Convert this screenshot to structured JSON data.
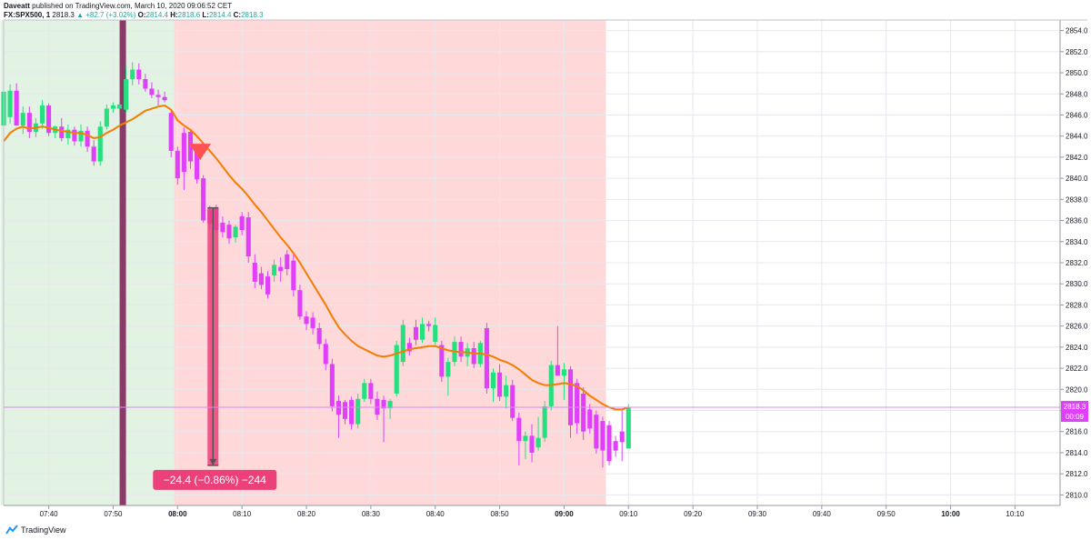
{
  "header": {
    "publisher": "Daveatt",
    "publisher_suffix": "published on TradingView.com, March 10, 2020 09:06:52 CET",
    "symbol": "FX:SPX500, 1",
    "last": "2818.3",
    "change": "+82.7 (+3.02%)",
    "o_label": "O:",
    "o": "2814.4",
    "h_label": "H:",
    "h": "2818.6",
    "l_label": "L:",
    "l": "2814.4",
    "c_label": "C:",
    "c": "2818.3"
  },
  "footer": {
    "brand": "TradingView",
    "logo_icon": "tradingview-logo-icon"
  },
  "colors": {
    "bull": "#26e07f",
    "bear": "#e040fb",
    "ema": "#f57c00",
    "green_zone": "rgba(76,175,80,0.16)",
    "red_zone": "rgba(255,82,82,0.22)",
    "marker_bar": "#8a3a66",
    "measure": "#ec407a",
    "price_line": "#d98cf0",
    "price_label": "#e040fb"
  },
  "chart_data": {
    "type": "candlestick",
    "title": "",
    "xlabel": "",
    "ylabel": "",
    "ylim": [
      2809,
      2855
    ],
    "y_ticks": [
      "2810.0",
      "2812.0",
      "2814.0",
      "2816.0",
      "2818.0",
      "2820.0",
      "2822.0",
      "2824.0",
      "2826.0",
      "2828.0",
      "2830.0",
      "2832.0",
      "2834.0",
      "2836.0",
      "2838.0",
      "2840.0",
      "2842.0",
      "2844.0",
      "2846.0",
      "2848.0",
      "2850.0",
      "2852.0",
      "2854.0"
    ],
    "x_ticks": [
      {
        "label": "07:40",
        "min": 7
      },
      {
        "label": "07:50",
        "min": 17
      },
      {
        "label": "08:00",
        "min": 27,
        "bold": true
      },
      {
        "label": "08:10",
        "min": 37
      },
      {
        "label": "08:20",
        "min": 47
      },
      {
        "label": "08:30",
        "min": 57
      },
      {
        "label": "08:40",
        "min": 67
      },
      {
        "label": "08:50",
        "min": 77
      },
      {
        "label": "09:00",
        "min": 87,
        "bold": true
      },
      {
        "label": "09:10",
        "min": 97
      },
      {
        "label": "09:20",
        "min": 107
      },
      {
        "label": "09:30",
        "min": 117
      },
      {
        "label": "09:40",
        "min": 127
      },
      {
        "label": "09:50",
        "min": 137
      },
      {
        "label": "10:00",
        "min": 147,
        "bold": true
      },
      {
        "label": "10:10",
        "min": 157
      }
    ],
    "x_range_minutes": [
      0,
      164
    ],
    "grid": true,
    "candles": [
      {
        "o": 2845.0,
        "h": 2848.6,
        "l": 2844.6,
        "c": 2848.2
      },
      {
        "o": 2845.8,
        "h": 2848.9,
        "l": 2845.2,
        "c": 2848.3
      },
      {
        "o": 2848.3,
        "h": 2849.0,
        "l": 2845.0,
        "c": 2845.0
      },
      {
        "o": 2845.0,
        "h": 2846.8,
        "l": 2844.2,
        "c": 2846.2
      },
      {
        "o": 2846.2,
        "h": 2846.8,
        "l": 2843.8,
        "c": 2844.4
      },
      {
        "o": 2844.4,
        "h": 2845.7,
        "l": 2843.9,
        "c": 2845.2
      },
      {
        "o": 2845.2,
        "h": 2847.4,
        "l": 2844.7,
        "c": 2846.9
      },
      {
        "o": 2846.9,
        "h": 2847.1,
        "l": 2844.0,
        "c": 2844.3
      },
      {
        "o": 2844.3,
        "h": 2845.0,
        "l": 2843.8,
        "c": 2844.9
      },
      {
        "o": 2844.9,
        "h": 2845.7,
        "l": 2843.5,
        "c": 2843.8
      },
      {
        "o": 2843.8,
        "h": 2845.1,
        "l": 2843.2,
        "c": 2844.6
      },
      {
        "o": 2844.6,
        "h": 2844.9,
        "l": 2843.1,
        "c": 2843.5
      },
      {
        "o": 2843.5,
        "h": 2845.1,
        "l": 2843.0,
        "c": 2844.5
      },
      {
        "o": 2844.5,
        "h": 2844.9,
        "l": 2842.5,
        "c": 2843.0
      },
      {
        "o": 2843.0,
        "h": 2843.6,
        "l": 2841.2,
        "c": 2841.6
      },
      {
        "o": 2841.6,
        "h": 2845.4,
        "l": 2841.2,
        "c": 2844.9
      },
      {
        "o": 2844.9,
        "h": 2847.0,
        "l": 2844.6,
        "c": 2846.6
      },
      {
        "o": 2846.6,
        "h": 2847.2,
        "l": 2846.2,
        "c": 2846.9
      },
      {
        "o": 2846.6,
        "h": 2847.2,
        "l": 2846.0,
        "c": 2847.0
      },
      {
        "o": 2846.5,
        "h": 2850.6,
        "l": 2846.2,
        "c": 2849.4
      },
      {
        "o": 2849.4,
        "h": 2851.0,
        "l": 2848.8,
        "c": 2850.3
      },
      {
        "o": 2850.3,
        "h": 2850.9,
        "l": 2848.9,
        "c": 2849.4
      },
      {
        "o": 2849.4,
        "h": 2849.9,
        "l": 2848.2,
        "c": 2848.5
      },
      {
        "o": 2848.5,
        "h": 2849.1,
        "l": 2847.6,
        "c": 2847.9
      },
      {
        "o": 2847.9,
        "h": 2848.4,
        "l": 2846.9,
        "c": 2847.7
      },
      {
        "o": 2847.7,
        "h": 2848.2,
        "l": 2847.2,
        "c": 2847.4
      },
      {
        "o": 2846.2,
        "h": 2846.4,
        "l": 2842.0,
        "c": 2842.6
      },
      {
        "o": 2842.6,
        "h": 2843.0,
        "l": 2839.4,
        "c": 2840.0
      },
      {
        "o": 2844.3,
        "h": 2844.8,
        "l": 2838.9,
        "c": 2840.6
      },
      {
        "o": 2844.4,
        "h": 2844.6,
        "l": 2840.9,
        "c": 2841.6
      },
      {
        "o": 2842.6,
        "h": 2843.0,
        "l": 2839.5,
        "c": 2839.9
      },
      {
        "o": 2840.0,
        "h": 2840.3,
        "l": 2835.8,
        "c": 2836.0
      },
      {
        "o": 2837.0,
        "h": 2837.4,
        "l": 2835.2,
        "c": 2835.7
      },
      {
        "o": 2837.2,
        "h": 2837.5,
        "l": 2834.8,
        "c": 2835.1
      },
      {
        "o": 2835.8,
        "h": 2836.4,
        "l": 2834.4,
        "c": 2834.9
      },
      {
        "o": 2835.6,
        "h": 2836.0,
        "l": 2833.8,
        "c": 2834.3
      },
      {
        "o": 2834.4,
        "h": 2835.6,
        "l": 2833.9,
        "c": 2835.4
      },
      {
        "o": 2836.4,
        "h": 2836.8,
        "l": 2834.6,
        "c": 2835.1
      },
      {
        "o": 2836.3,
        "h": 2836.8,
        "l": 2832.0,
        "c": 2832.6
      },
      {
        "o": 2832.0,
        "h": 2832.8,
        "l": 2829.6,
        "c": 2830.2
      },
      {
        "o": 2831.0,
        "h": 2831.6,
        "l": 2829.5,
        "c": 2829.9
      },
      {
        "o": 2830.7,
        "h": 2831.2,
        "l": 2828.6,
        "c": 2829.0
      },
      {
        "o": 2830.8,
        "h": 2832.3,
        "l": 2830.2,
        "c": 2831.8
      },
      {
        "o": 2831.6,
        "h": 2832.5,
        "l": 2830.2,
        "c": 2831.2
      },
      {
        "o": 2832.8,
        "h": 2833.2,
        "l": 2830.8,
        "c": 2831.4
      },
      {
        "o": 2832.2,
        "h": 2833.0,
        "l": 2828.8,
        "c": 2829.4
      },
      {
        "o": 2829.4,
        "h": 2829.9,
        "l": 2826.6,
        "c": 2826.9
      },
      {
        "o": 2826.9,
        "h": 2827.4,
        "l": 2825.6,
        "c": 2826.2
      },
      {
        "o": 2826.8,
        "h": 2827.3,
        "l": 2825.2,
        "c": 2825.8
      },
      {
        "o": 2825.8,
        "h": 2826.3,
        "l": 2823.8,
        "c": 2824.3
      },
      {
        "o": 2824.3,
        "h": 2824.8,
        "l": 2821.8,
        "c": 2822.4
      },
      {
        "o": 2822.4,
        "h": 2822.9,
        "l": 2817.9,
        "c": 2818.4
      },
      {
        "o": 2818.9,
        "h": 2819.4,
        "l": 2815.4,
        "c": 2817.6
      },
      {
        "o": 2818.8,
        "h": 2819.0,
        "l": 2816.7,
        "c": 2817.2
      },
      {
        "o": 2819.0,
        "h": 2819.3,
        "l": 2816.2,
        "c": 2816.7
      },
      {
        "o": 2816.7,
        "h": 2819.6,
        "l": 2816.3,
        "c": 2819.1
      },
      {
        "o": 2819.1,
        "h": 2821.0,
        "l": 2818.8,
        "c": 2820.6
      },
      {
        "o": 2820.6,
        "h": 2821.0,
        "l": 2818.6,
        "c": 2819.1
      },
      {
        "o": 2819.1,
        "h": 2819.8,
        "l": 2817.1,
        "c": 2817.6
      },
      {
        "o": 2819.0,
        "h": 2819.4,
        "l": 2815.0,
        "c": 2818.2
      },
      {
        "o": 2818.2,
        "h": 2819.1,
        "l": 2817.2,
        "c": 2818.9
      },
      {
        "o": 2819.6,
        "h": 2824.6,
        "l": 2819.3,
        "c": 2824.2
      },
      {
        "o": 2822.6,
        "h": 2826.6,
        "l": 2822.2,
        "c": 2826.1
      },
      {
        "o": 2824.4,
        "h": 2824.9,
        "l": 2823.2,
        "c": 2823.6
      },
      {
        "o": 2825.9,
        "h": 2826.6,
        "l": 2824.2,
        "c": 2824.7
      },
      {
        "o": 2824.7,
        "h": 2826.8,
        "l": 2824.4,
        "c": 2826.2
      },
      {
        "o": 2826.2,
        "h": 2826.5,
        "l": 2825.5,
        "c": 2826.0
      },
      {
        "o": 2824.5,
        "h": 2826.8,
        "l": 2824.2,
        "c": 2826.1
      },
      {
        "o": 2824.2,
        "h": 2824.6,
        "l": 2820.7,
        "c": 2821.2
      },
      {
        "o": 2821.2,
        "h": 2823.0,
        "l": 2819.4,
        "c": 2822.6
      },
      {
        "o": 2822.6,
        "h": 2825.0,
        "l": 2822.2,
        "c": 2824.5
      },
      {
        "o": 2824.5,
        "h": 2825.0,
        "l": 2822.6,
        "c": 2823.1
      },
      {
        "o": 2823.1,
        "h": 2824.4,
        "l": 2822.2,
        "c": 2823.9
      },
      {
        "o": 2823.9,
        "h": 2824.5,
        "l": 2822.0,
        "c": 2822.4
      },
      {
        "o": 2822.4,
        "h": 2824.6,
        "l": 2822.1,
        "c": 2824.4
      },
      {
        "o": 2825.8,
        "h": 2826.3,
        "l": 2819.6,
        "c": 2820.1
      },
      {
        "o": 2820.1,
        "h": 2822.0,
        "l": 2818.8,
        "c": 2821.6
      },
      {
        "o": 2821.6,
        "h": 2822.4,
        "l": 2818.9,
        "c": 2819.3
      },
      {
        "o": 2819.3,
        "h": 2821.3,
        "l": 2818.2,
        "c": 2820.4
      },
      {
        "o": 2820.4,
        "h": 2820.9,
        "l": 2817.0,
        "c": 2817.3
      },
      {
        "o": 2817.3,
        "h": 2817.8,
        "l": 2812.8,
        "c": 2815.1
      },
      {
        "o": 2815.1,
        "h": 2816.0,
        "l": 2813.4,
        "c": 2815.6
      },
      {
        "o": 2815.6,
        "h": 2816.7,
        "l": 2813.1,
        "c": 2814.0
      },
      {
        "o": 2814.5,
        "h": 2817.4,
        "l": 2814.2,
        "c": 2815.4
      },
      {
        "o": 2815.4,
        "h": 2818.9,
        "l": 2815.0,
        "c": 2818.4
      },
      {
        "o": 2818.4,
        "h": 2822.7,
        "l": 2818.0,
        "c": 2822.3
      },
      {
        "o": 2822.3,
        "h": 2826.0,
        "l": 2821.6,
        "c": 2821.3
      },
      {
        "o": 2821.3,
        "h": 2822.5,
        "l": 2819.0,
        "c": 2821.9
      },
      {
        "o": 2821.9,
        "h": 2822.2,
        "l": 2815.4,
        "c": 2816.6
      },
      {
        "o": 2820.6,
        "h": 2821.0,
        "l": 2815.8,
        "c": 2816.8
      },
      {
        "o": 2819.6,
        "h": 2820.2,
        "l": 2815.2,
        "c": 2816.0
      },
      {
        "o": 2818.1,
        "h": 2818.6,
        "l": 2815.8,
        "c": 2816.3
      },
      {
        "o": 2817.6,
        "h": 2818.0,
        "l": 2813.9,
        "c": 2814.4
      },
      {
        "o": 2817.0,
        "h": 2817.4,
        "l": 2812.6,
        "c": 2814.2
      },
      {
        "o": 2816.6,
        "h": 2817.0,
        "l": 2812.8,
        "c": 2813.2
      },
      {
        "o": 2815.1,
        "h": 2815.6,
        "l": 2813.6,
        "c": 2814.2
      },
      {
        "o": 2816.0,
        "h": 2818.0,
        "l": 2813.2,
        "c": 2815.0
      },
      {
        "o": 2814.4,
        "h": 2818.6,
        "l": 2814.4,
        "c": 2818.3
      }
    ],
    "ema": [
      2843.5,
      2844.3,
      2844.7,
      2844.9,
      2844.7,
      2844.8,
      2844.9,
      2844.8,
      2844.6,
      2844.5,
      2844.4,
      2844.3,
      2844.3,
      2844.1,
      2843.8,
      2843.9,
      2844.3,
      2844.6,
      2845.0,
      2845.3,
      2845.6,
      2846.0,
      2846.4,
      2846.6,
      2846.8,
      2846.9,
      2846.5,
      2845.5,
      2845.0,
      2844.6,
      2844.0,
      2843.3,
      2842.6,
      2841.9,
      2841.1,
      2840.3,
      2839.6,
      2839.0,
      2838.3,
      2837.5,
      2836.8,
      2836.0,
      2835.2,
      2834.4,
      2833.7,
      2832.9,
      2832.0,
      2831.0,
      2830.0,
      2829.0,
      2828.0,
      2826.9,
      2825.9,
      2825.2,
      2824.6,
      2824.1,
      2823.8,
      2823.5,
      2823.2,
      2823.1,
      2823.2,
      2823.4,
      2823.6,
      2823.8,
      2823.9,
      2824.0,
      2824.1,
      2824.1,
      2823.9,
      2823.7,
      2823.6,
      2823.5,
      2823.5,
      2823.4,
      2823.4,
      2823.3,
      2823.1,
      2822.8,
      2822.6,
      2822.3,
      2821.9,
      2821.4,
      2820.9,
      2820.6,
      2820.4,
      2820.4,
      2820.5,
      2820.6,
      2820.5,
      2820.3,
      2819.9,
      2819.4,
      2819.0,
      2818.6,
      2818.3,
      2818.1,
      2818.1,
      2818.3
    ],
    "first_candle_minute": 0,
    "green_zone_minutes": [
      -0.5,
      26.5
    ],
    "red_zone_minutes": [
      26.5,
      93.5
    ],
    "marker_bar_minute": 18.5,
    "sell_signal": {
      "minute": 30.5,
      "price": 2842.5
    },
    "measure": {
      "minute": 32.5,
      "from": 2837.2,
      "to": 2812.8,
      "label": "−24.4 (−0.86%) −244"
    },
    "current_price": {
      "value": 2818.3,
      "label": "2818.3",
      "countdown": "00:09"
    }
  }
}
